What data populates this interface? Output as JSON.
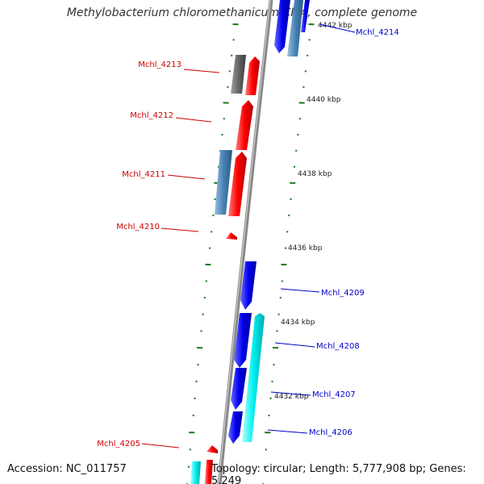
{
  "title": "Methylobacterium chloromethanicum CM4, complete genome",
  "accession": "Accession: NC_011757",
  "topology": "Topology: circular; Length: 5,777,908 bp; Genes: 5,249",
  "colors": {
    "backbone": "#888888",
    "tick": "#1a7a1a",
    "label_red": "#cc0000",
    "label_blue": "#0000cc"
  },
  "scale_labels": [
    "4442 kbp",
    "4440 kbp",
    "4438 kbp",
    "4436 kbp",
    "4434 kbp",
    "4432 kbp"
  ],
  "genes": [
    {
      "label": "Mchl_4214",
      "color": "blue",
      "icon": "gene-arrow-icon"
    },
    {
      "label": "Mchl_4213",
      "color": "red",
      "icon": "gene-arrow-icon"
    },
    {
      "label": "Mchl_4212",
      "color": "red",
      "icon": "gene-arrow-icon"
    },
    {
      "label": "Mchl_4211",
      "color": "red",
      "icon": "gene-arrow-icon"
    },
    {
      "label": "Mchl_4210",
      "color": "red",
      "icon": "gene-arrow-icon"
    },
    {
      "label": "Mchl_4209",
      "color": "blue",
      "icon": "gene-arrow-icon"
    },
    {
      "label": "Mchl_4208",
      "color": "blue",
      "icon": "gene-arrow-icon"
    },
    {
      "label": "Mchl_4207",
      "color": "blue",
      "icon": "gene-arrow-icon"
    },
    {
      "label": "Mchl_4206",
      "color": "blue",
      "icon": "gene-arrow-icon"
    },
    {
      "label": "Mchl_4205",
      "color": "red",
      "icon": "gene-arrow-icon"
    }
  ]
}
